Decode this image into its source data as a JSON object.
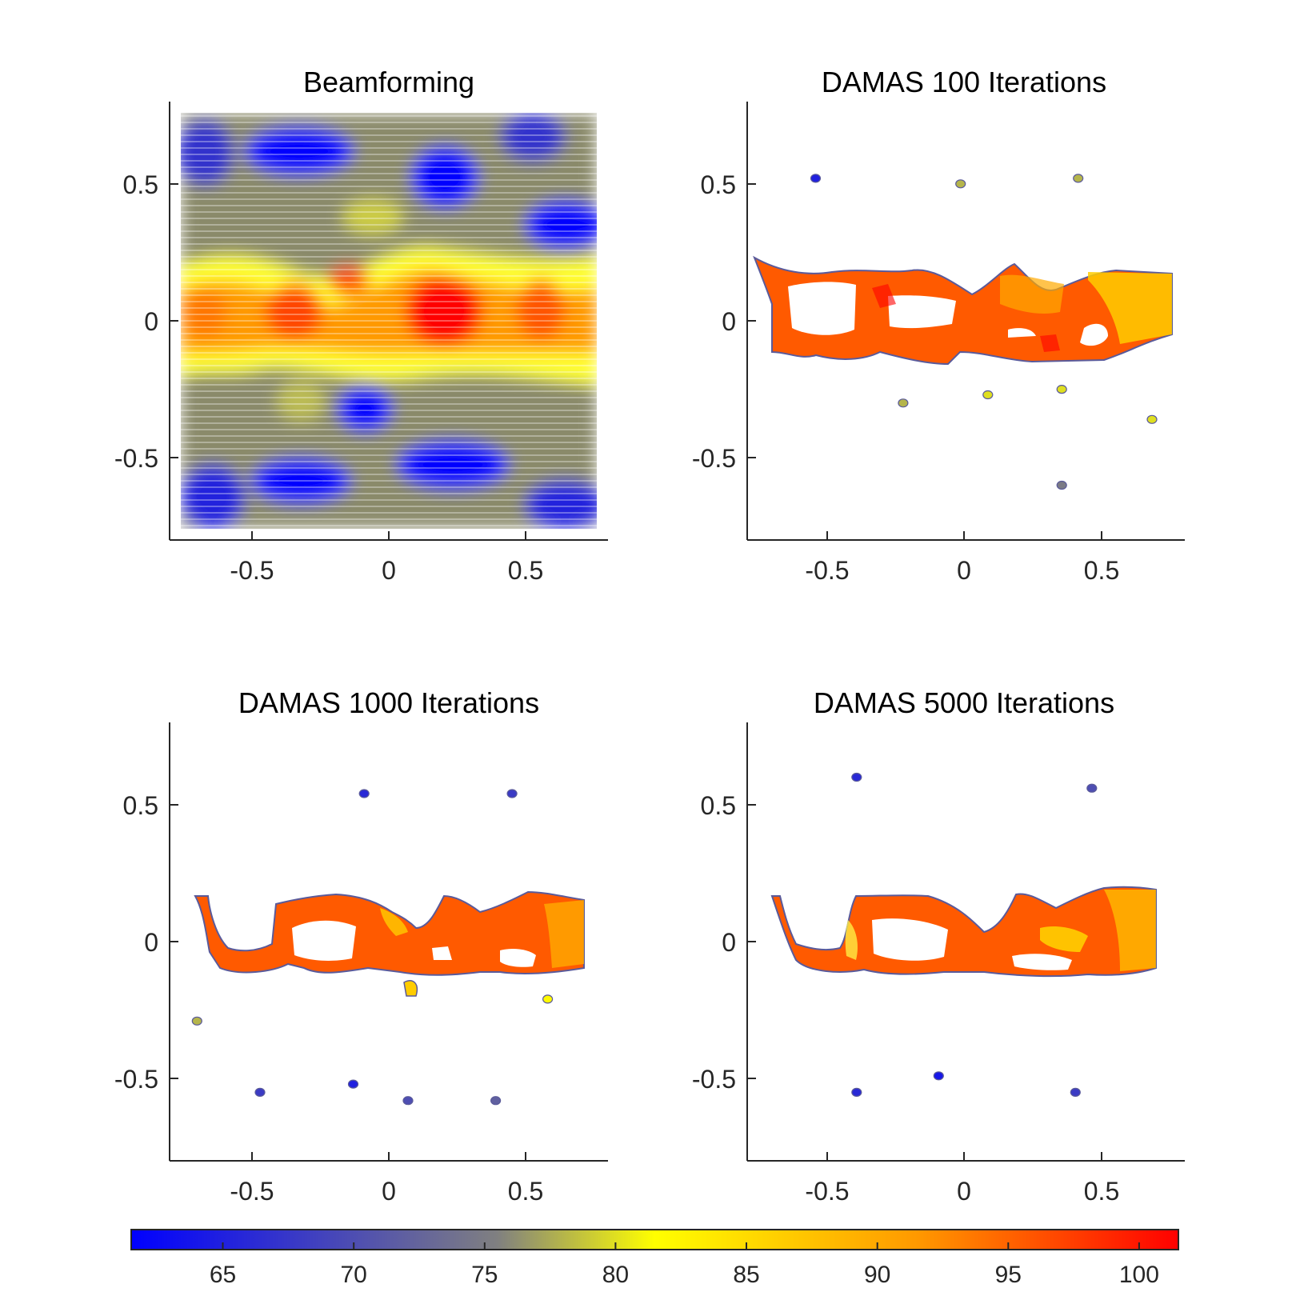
{
  "chart_data": [
    {
      "type": "contour",
      "title": "Beamforming",
      "xlim": [
        -0.8,
        0.8
      ],
      "ylim": [
        -0.8,
        0.8
      ],
      "xticks": [
        "-0.5",
        "0",
        "0.5"
      ],
      "yticks": [
        "0.5",
        "0",
        "-0.5"
      ],
      "xtick_values": [
        -0.5,
        0,
        0.5
      ],
      "ytick_values": [
        0.5,
        0,
        -0.5
      ],
      "peaks": [
        {
          "x": 0.2,
          "y": 0.04,
          "level": 101
        },
        {
          "x": -0.34,
          "y": 0.03,
          "level": 95
        },
        {
          "x": 0.55,
          "y": 0.04,
          "level": 92
        },
        {
          "x": -0.1,
          "y": 0.15,
          "level": 90
        },
        {
          "x": -0.7,
          "y": 0.03,
          "level": 88
        }
      ],
      "minima": [
        {
          "x": -0.33,
          "y": 0.64,
          "level": 62
        },
        {
          "x": 0.22,
          "y": 0.55,
          "level": 64
        },
        {
          "x": 0.62,
          "y": 0.42,
          "level": 63
        },
        {
          "x": -0.08,
          "y": -0.33,
          "level": 64
        },
        {
          "x": -0.3,
          "y": -0.6,
          "level": 62
        },
        {
          "x": 0.25,
          "y": -0.55,
          "level": 63
        }
      ]
    },
    {
      "type": "contour",
      "title": "DAMAS  100 Iterations",
      "xlim": [
        -0.8,
        0.8
      ],
      "ylim": [
        -0.8,
        0.8
      ],
      "xticks": [
        "-0.5",
        "0",
        "0.5"
      ],
      "yticks": [
        "0.5",
        "0",
        "-0.5"
      ],
      "xtick_values": [
        -0.5,
        0,
        0.5
      ],
      "ytick_values": [
        0.5,
        0,
        -0.5
      ],
      "source_band": {
        "x_range": [
          -0.75,
          0.76
        ],
        "y_range": [
          -0.15,
          0.2
        ],
        "level_range": [
          84,
          101
        ]
      },
      "spots": [
        {
          "x": -0.55,
          "y": 0.52,
          "level": 65
        },
        {
          "x": -0.02,
          "y": 0.5,
          "level": 78
        },
        {
          "x": 0.41,
          "y": 0.52,
          "level": 78
        },
        {
          "x": 0.08,
          "y": -0.27,
          "level": 80
        },
        {
          "x": 0.35,
          "y": -0.25,
          "level": 80
        },
        {
          "x": -0.23,
          "y": -0.3,
          "level": 78
        },
        {
          "x": 0.68,
          "y": -0.36,
          "level": 80
        },
        {
          "x": 0.35,
          "y": -0.6,
          "level": 75
        }
      ]
    },
    {
      "type": "contour",
      "title": "DAMAS  1000 Iterations",
      "xlim": [
        -0.8,
        0.8
      ],
      "ylim": [
        -0.8,
        0.8
      ],
      "xticks": [
        "-0.5",
        "0",
        "0.5"
      ],
      "yticks": [
        "0.5",
        "0",
        "-0.5"
      ],
      "xtick_values": [
        -0.5,
        0,
        0.5
      ],
      "ytick_values": [
        0.5,
        0,
        -0.5
      ],
      "source_band": {
        "x_range": [
          -0.71,
          0.71
        ],
        "y_range": [
          -0.18,
          0.19
        ],
        "level_range": [
          84,
          101
        ]
      },
      "spots": [
        {
          "x": -0.7,
          "y": -0.29,
          "level": 78
        },
        {
          "x": 0.58,
          "y": -0.21,
          "level": 82
        },
        {
          "x": -0.13,
          "y": -0.52,
          "level": 65
        },
        {
          "x": -0.47,
          "y": -0.55,
          "level": 68
        },
        {
          "x": 0.07,
          "y": -0.58,
          "level": 70
        },
        {
          "x": 0.39,
          "y": -0.58,
          "level": 72
        },
        {
          "x": -0.09,
          "y": 0.54,
          "level": 66
        },
        {
          "x": 0.45,
          "y": 0.54,
          "level": 68
        }
      ]
    },
    {
      "type": "contour",
      "title": "DAMAS  5000 Iterations",
      "xlim": [
        -0.8,
        0.8
      ],
      "ylim": [
        -0.8,
        0.8
      ],
      "xticks": [
        "-0.5",
        "0",
        "0.5"
      ],
      "yticks": [
        "0.5",
        "0",
        "-0.5"
      ],
      "xtick_values": [
        -0.5,
        0,
        0.5
      ],
      "ytick_values": [
        0.5,
        0,
        -0.5
      ],
      "source_band": {
        "x_range": [
          -0.72,
          0.69
        ],
        "y_range": [
          -0.19,
          0.19
        ],
        "level_range": [
          84,
          101
        ]
      },
      "spots": [
        {
          "x": -0.4,
          "y": -0.55,
          "level": 66
        },
        {
          "x": -0.1,
          "y": -0.49,
          "level": 64
        },
        {
          "x": 0.4,
          "y": -0.55,
          "level": 68
        },
        {
          "x": 0.46,
          "y": 0.56,
          "level": 70
        },
        {
          "x": -0.4,
          "y": 0.6,
          "level": 66
        }
      ]
    },
    {
      "type": "colorbar",
      "range": [
        61.5,
        101.5
      ],
      "ticks": [
        "65",
        "70",
        "75",
        "80",
        "85",
        "90",
        "95",
        "100"
      ],
      "tick_values": [
        65,
        70,
        75,
        80,
        85,
        90,
        95,
        100
      ],
      "colormap": [
        "#0000ff",
        "#808080",
        "#ffff00",
        "#ff9900",
        "#ff0000"
      ]
    }
  ]
}
